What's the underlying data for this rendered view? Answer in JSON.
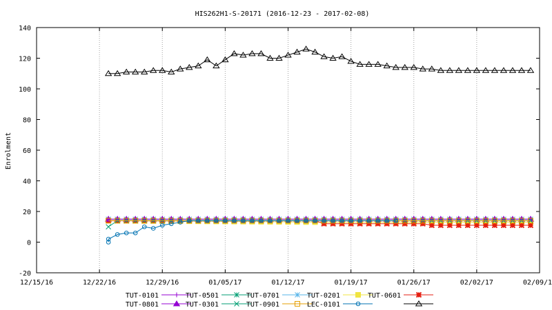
{
  "chart_data": {
    "type": "line",
    "title": "HIS262H1-S-20171 (2016-12-23 - 2017-02-08)",
    "xlabel": "",
    "ylabel": "Enrolment",
    "ylim": [
      -20,
      140
    ],
    "yticks": [
      -20,
      0,
      20,
      40,
      60,
      80,
      100,
      120,
      140
    ],
    "xlim": [
      "2016-12-15",
      "2017-02-09"
    ],
    "xticks": [
      {
        "date": "2016-12-15",
        "label": "12/15/16"
      },
      {
        "date": "2016-12-22",
        "label": "12/22/16"
      },
      {
        "date": "2016-12-29",
        "label": "12/29/16"
      },
      {
        "date": "2017-01-05",
        "label": "01/05/17"
      },
      {
        "date": "2017-01-12",
        "label": "01/12/17"
      },
      {
        "date": "2017-01-19",
        "label": "01/19/17"
      },
      {
        "date": "2017-01-26",
        "label": "01/26/17"
      },
      {
        "date": "2017-02-02",
        "label": "02/02/17"
      },
      {
        "date": "2017-02-09",
        "label": "02/09/17"
      }
    ],
    "grid": "x",
    "legend_position": "bottom",
    "series": [
      {
        "name": "TUT-0101",
        "color": "#9400d3",
        "marker": "plus",
        "segments": [
          {
            "start": "2016-12-23",
            "end": "2017-02-08",
            "from": 15,
            "to": 15
          }
        ]
      },
      {
        "name": "TUT-0501",
        "color": "#009e73",
        "marker": "star",
        "segments": [
          {
            "start": "2016-12-23",
            "end": "2017-02-08",
            "from": 14,
            "to": 14
          }
        ]
      },
      {
        "name": "TUT-0701",
        "color": "#56b4e9",
        "marker": "asterisk",
        "segments": [
          {
            "start": "2016-12-23",
            "end": "2017-02-08",
            "from": 15,
            "to": 15
          }
        ]
      },
      {
        "name": "TUT-0201",
        "color": "#f0e442",
        "marker": "filled-square",
        "segments": [
          {
            "start": "2016-12-23",
            "end": "2017-01-17",
            "from": 14,
            "to": 13
          },
          {
            "start": "2017-01-18",
            "end": "2017-02-08",
            "from": 13,
            "to": 13
          }
        ]
      },
      {
        "name": "TUT-0601",
        "color": "#e51e10",
        "marker": "filled-star",
        "segments": [
          {
            "start": "2016-12-23",
            "end": "2017-01-15",
            "from": 14,
            "to": 14
          },
          {
            "start": "2017-01-16",
            "end": "2017-01-24",
            "from": 12,
            "to": 12
          },
          {
            "start": "2017-01-25",
            "end": "2017-01-27",
            "from": 12,
            "to": 12
          },
          {
            "start": "2017-01-28",
            "end": "2017-02-08",
            "from": 11,
            "to": 11
          }
        ]
      },
      {
        "name": "TUT-0801",
        "color": "#9400d3",
        "marker": "filled-triangle",
        "segments": [
          {
            "start": "2016-12-23",
            "end": "2017-02-08",
            "from": 15,
            "to": 15
          }
        ]
      },
      {
        "name": "TUT-0301",
        "color": "#009e73",
        "marker": "x",
        "segments": [
          {
            "start": "2016-12-23",
            "end": "2016-12-23",
            "from": 10,
            "to": 10
          },
          {
            "start": "2016-12-24",
            "end": "2017-02-08",
            "from": 14,
            "to": 14
          }
        ]
      },
      {
        "name": "TUT-0901",
        "color": "#e69f00",
        "marker": "square",
        "segments": [
          {
            "start": "2016-12-23",
            "end": "2017-02-08",
            "from": 14,
            "to": 14
          }
        ]
      },
      {
        "name": "LEC-0101",
        "color": "#0072b2",
        "marker": "circle",
        "points": [
          [
            "2016-12-23",
            0
          ],
          [
            "2016-12-23",
            2
          ],
          [
            "2016-12-24",
            5
          ],
          [
            "2016-12-25",
            6
          ],
          [
            "2016-12-26",
            6
          ],
          [
            "2016-12-27",
            10
          ],
          [
            "2016-12-28",
            9
          ],
          [
            "2016-12-29",
            11
          ],
          [
            "2016-12-30",
            12
          ],
          [
            "2016-12-31",
            13
          ],
          [
            "2017-01-01",
            14
          ],
          [
            "2017-01-02",
            14
          ],
          [
            "2017-01-03",
            14
          ],
          [
            "2017-01-04",
            14
          ],
          [
            "2017-01-05",
            14
          ],
          [
            "2017-01-06",
            14
          ],
          [
            "2017-01-07",
            14
          ],
          [
            "2017-01-08",
            14
          ],
          [
            "2017-01-09",
            14
          ],
          [
            "2017-01-10",
            14
          ],
          [
            "2017-01-11",
            14
          ],
          [
            "2017-01-12",
            14
          ],
          [
            "2017-01-13",
            14
          ],
          [
            "2017-01-14",
            14
          ],
          [
            "2017-01-15",
            14
          ],
          [
            "2017-01-16",
            14
          ],
          [
            "2017-01-17",
            14
          ],
          [
            "2017-01-18",
            14
          ],
          [
            "2017-01-19",
            14
          ],
          [
            "2017-01-20",
            14
          ],
          [
            "2017-01-21",
            14
          ],
          [
            "2017-01-22",
            14
          ],
          [
            "2017-01-23",
            14
          ],
          [
            "2017-01-24",
            14
          ]
        ]
      },
      {
        "name": "",
        "color": "#000000",
        "marker": "triangle",
        "points": [
          [
            "2016-12-23",
            110
          ],
          [
            "2016-12-24",
            110
          ],
          [
            "2016-12-25",
            111
          ],
          [
            "2016-12-26",
            111
          ],
          [
            "2016-12-27",
            111
          ],
          [
            "2016-12-28",
            112
          ],
          [
            "2016-12-29",
            112
          ],
          [
            "2016-12-30",
            111
          ],
          [
            "2016-12-31",
            113
          ],
          [
            "2017-01-01",
            114
          ],
          [
            "2017-01-02",
            115
          ],
          [
            "2017-01-03",
            119
          ],
          [
            "2017-01-04",
            115
          ],
          [
            "2017-01-05",
            119
          ],
          [
            "2017-01-06",
            123
          ],
          [
            "2017-01-07",
            122
          ],
          [
            "2017-01-08",
            123
          ],
          [
            "2017-01-09",
            123
          ],
          [
            "2017-01-10",
            120
          ],
          [
            "2017-01-11",
            120
          ],
          [
            "2017-01-12",
            122
          ],
          [
            "2017-01-13",
            124
          ],
          [
            "2017-01-14",
            126
          ],
          [
            "2017-01-15",
            124
          ],
          [
            "2017-01-16",
            121
          ],
          [
            "2017-01-17",
            120
          ],
          [
            "2017-01-18",
            121
          ],
          [
            "2017-01-19",
            118
          ],
          [
            "2017-01-20",
            116
          ],
          [
            "2017-01-21",
            116
          ],
          [
            "2017-01-22",
            116
          ],
          [
            "2017-01-23",
            115
          ],
          [
            "2017-01-24",
            114
          ],
          [
            "2017-01-25",
            114
          ],
          [
            "2017-01-26",
            114
          ],
          [
            "2017-01-27",
            113
          ],
          [
            "2017-01-28",
            113
          ],
          [
            "2017-01-29",
            112
          ],
          [
            "2017-01-30",
            112
          ],
          [
            "2017-01-31",
            112
          ],
          [
            "2017-02-01",
            112
          ],
          [
            "2017-02-02",
            112
          ],
          [
            "2017-02-03",
            112
          ],
          [
            "2017-02-04",
            112
          ],
          [
            "2017-02-05",
            112
          ],
          [
            "2017-02-06",
            112
          ],
          [
            "2017-02-07",
            112
          ],
          [
            "2017-02-08",
            112
          ]
        ]
      }
    ]
  }
}
